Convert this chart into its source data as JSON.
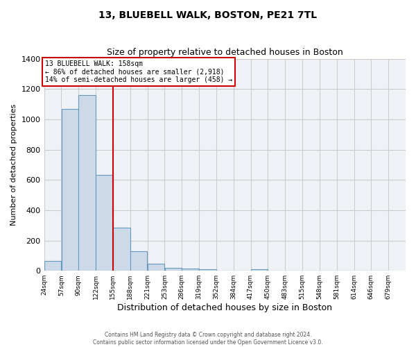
{
  "title": "13, BLUEBELL WALK, BOSTON, PE21 7TL",
  "subtitle": "Size of property relative to detached houses in Boston",
  "xlabel": "Distribution of detached houses by size in Boston",
  "ylabel": "Number of detached properties",
  "bar_heights": [
    65,
    1068,
    1160,
    635,
    285,
    130,
    47,
    20,
    14,
    10,
    0,
    0,
    10,
    0,
    0,
    0,
    0,
    0,
    0,
    0
  ],
  "tick_labels": [
    "24sqm",
    "57sqm",
    "90sqm",
    "122sqm",
    "155sqm",
    "188sqm",
    "221sqm",
    "253sqm",
    "286sqm",
    "319sqm",
    "352sqm",
    "384sqm",
    "417sqm",
    "450sqm",
    "483sqm",
    "515sqm",
    "548sqm",
    "581sqm",
    "614sqm",
    "646sqm",
    "679sqm"
  ],
  "ylim": [
    0,
    1400
  ],
  "property_value": 158,
  "bar_face_color": "#ccd9e8",
  "bar_edge_color": "#6699bb",
  "annotation_title": "13 BLUEBELL WALK: 158sqm",
  "annotation_line1": "← 86% of detached houses are smaller (2,918)",
  "annotation_line2": "14% of semi-detached houses are larger (458) →",
  "annotation_box_color": "#ffffff",
  "annotation_box_edge": "#cc0000",
  "vline_color": "#cc0000",
  "footer1": "Contains HM Land Registry data © Crown copyright and database right 2024.",
  "footer2": "Contains public sector information licensed under the Open Government Licence v3.0.",
  "grid_color": "#cccccc",
  "bg_color": "#eef2f7",
  "yticks": [
    0,
    200,
    400,
    600,
    800,
    1000,
    1200,
    1400
  ]
}
